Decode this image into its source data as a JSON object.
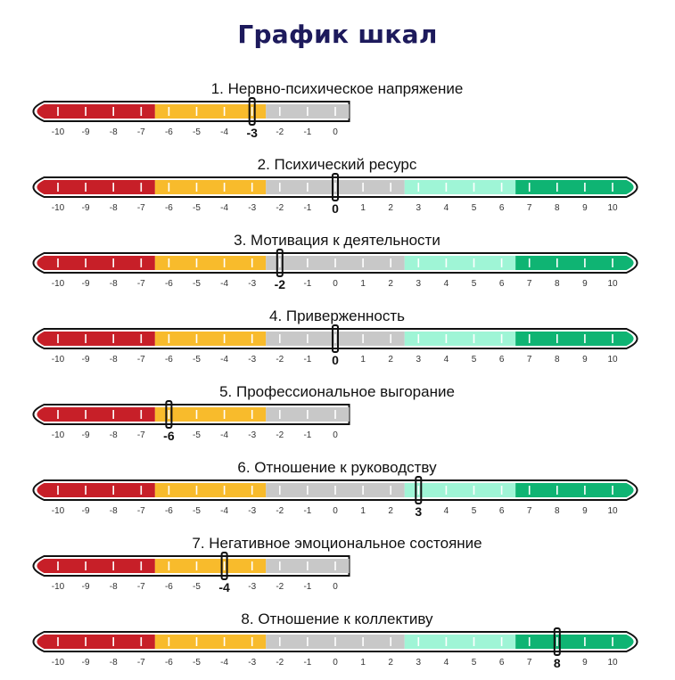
{
  "title": "График шкал",
  "colors": {
    "title": "#1d1a5c",
    "red": "#c71f28",
    "yellow": "#f8bb2c",
    "gray": "#c8c8c8",
    "mint": "#9ff5d6",
    "green": "#0fb473",
    "outline": "#111111",
    "tick_text": "#333333"
  },
  "chart_data": {
    "type": "scale",
    "title": "График шкал",
    "zones": [
      {
        "from": -10.5,
        "to": -6.5,
        "color": "red"
      },
      {
        "from": -6.5,
        "to": -2.5,
        "color": "yellow"
      },
      {
        "from": -2.5,
        "to": 2.5,
        "color": "gray"
      },
      {
        "from": 2.5,
        "to": 6.5,
        "color": "mint"
      },
      {
        "from": 6.5,
        "to": 10.5,
        "color": "green"
      }
    ],
    "scales": [
      {
        "label": "1. Нервно-психическое напряжение",
        "min": -10,
        "max": 0,
        "value": -3
      },
      {
        "label": "2. Психический ресурс",
        "min": -10,
        "max": 10,
        "value": 0
      },
      {
        "label": "3. Мотивация к деятельности",
        "min": -10,
        "max": 10,
        "value": -2
      },
      {
        "label": "4. Приверженность",
        "min": -10,
        "max": 10,
        "value": 0
      },
      {
        "label": "5. Профессиональное выгорание",
        "min": -10,
        "max": 0,
        "value": -6
      },
      {
        "label": "6. Отношение к руководству",
        "min": -10,
        "max": 10,
        "value": 3
      },
      {
        "label": "7. Негативное эмоциональное состояние",
        "min": -10,
        "max": 0,
        "value": -4
      },
      {
        "label": "8. Отношение к коллективу",
        "min": -10,
        "max": 10,
        "value": 8
      }
    ]
  }
}
